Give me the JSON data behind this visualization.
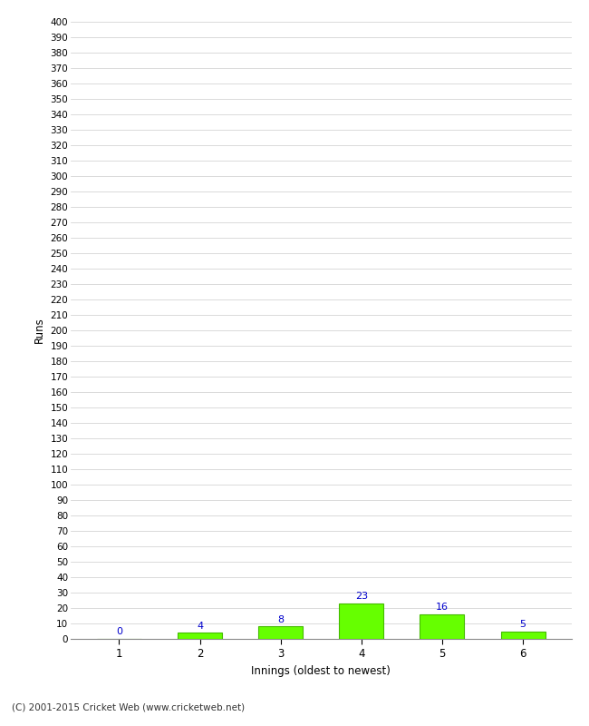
{
  "xlabel": "Innings (oldest to newest)",
  "ylabel": "Runs",
  "categories": [
    1,
    2,
    3,
    4,
    5,
    6
  ],
  "values": [
    0,
    4,
    8,
    23,
    16,
    5
  ],
  "bar_color": "#66ff00",
  "bar_edge_color": "#44bb00",
  "label_color": "#0000cc",
  "ylim": [
    0,
    400
  ],
  "background_color": "#ffffff",
  "grid_color": "#cccccc",
  "footer": "(C) 2001-2015 Cricket Web (www.cricketweb.net)"
}
